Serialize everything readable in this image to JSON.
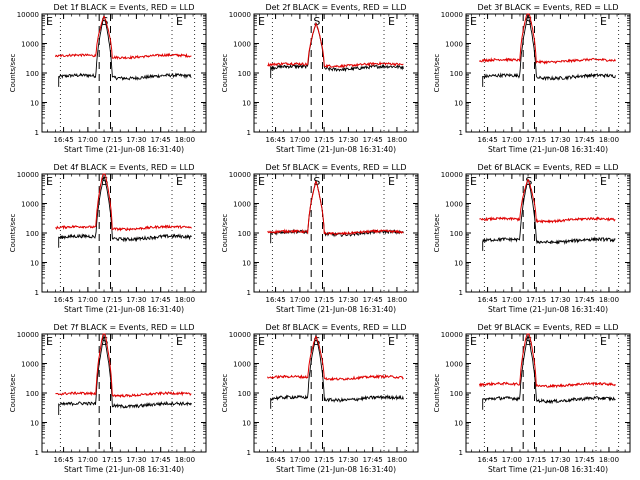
{
  "figure": {
    "type": "multi-panel-lightcurve",
    "background": "#ffffff",
    "events_color": "#000000",
    "lld_color": "#e00000"
  },
  "chart_data": [
    {
      "type": "line",
      "title": "Det 1f BLACK = Events, RED = LLD",
      "xlabel": "Start Time (21-Jun-08 16:31:40)",
      "ylabel": "Counts/sec",
      "ylog": true,
      "ylim": [
        1,
        10000
      ],
      "xlim": [
        "16:31:40",
        "18:13:00"
      ],
      "yticks": [
        "1",
        "10",
        "100",
        "1000",
        "10000"
      ],
      "xticks": [
        "16:45",
        "17:00",
        "17:15",
        "17:30",
        "17:45",
        "18:00"
      ],
      "dotted_markers": [
        "16:43",
        "17:52",
        "18:06"
      ],
      "dashed_markers": [
        "17:07",
        "17:14"
      ],
      "region_labels": [
        "E",
        "S",
        "E"
      ],
      "events_base": 75,
      "lld_base": 370,
      "events_start": "16:42",
      "lld_start": "16:40",
      "end": "18:04",
      "flare_start": "17:05",
      "flare_end": "17:15",
      "flare_peak": "17:10",
      "flare_peak_value": 9000,
      "events_flare_max": 9000
    },
    {
      "type": "line",
      "title": "Det 2f BLACK = Events, RED = LLD",
      "xlabel": "Start Time (21-Jun-08 16:31:40)",
      "ylabel": "Counts/sec",
      "ylog": true,
      "ylim": [
        1,
        10000
      ],
      "xlim": [
        "16:31:40",
        "18:13:00"
      ],
      "yticks": [
        "1",
        "10",
        "100",
        "1000",
        "10000"
      ],
      "xticks": [
        "16:45",
        "17:00",
        "17:15",
        "17:30",
        "17:45",
        "18:00"
      ],
      "dotted_markers": [
        "16:43",
        "17:52",
        "18:06"
      ],
      "dashed_markers": [
        "17:07",
        "17:14"
      ],
      "region_labels": [
        "E",
        "S",
        "E"
      ],
      "events_base": 150,
      "lld_base": 190,
      "events_start": "16:42",
      "lld_start": "16:40",
      "end": "18:04",
      "flare_start": "17:05",
      "flare_end": "17:15",
      "flare_peak": "17:10",
      "flare_peak_value": 5000,
      "events_flare_max": 5000
    },
    {
      "type": "line",
      "title": "Det 3f BLACK = Events, RED = LLD",
      "xlabel": "Start Time (21-Jun-08 16:31:40)",
      "ylabel": "Counts/sec",
      "ylog": true,
      "ylim": [
        1,
        10000
      ],
      "xlim": [
        "16:31:40",
        "18:13:00"
      ],
      "yticks": [
        "1",
        "10",
        "100",
        "1000",
        "10000"
      ],
      "xticks": [
        "16:45",
        "17:00",
        "17:15",
        "17:30",
        "17:45",
        "18:00"
      ],
      "dotted_markers": [
        "16:43",
        "17:52",
        "18:06"
      ],
      "dashed_markers": [
        "17:07",
        "17:14"
      ],
      "region_labels": [
        "E",
        "S",
        "E"
      ],
      "events_base": 75,
      "lld_base": 260,
      "events_start": "16:42",
      "lld_start": "16:40",
      "end": "18:04",
      "flare_start": "17:05",
      "flare_end": "17:15",
      "flare_peak": "17:10",
      "flare_peak_value": 15000,
      "events_flare_max": 10000
    },
    {
      "type": "line",
      "title": "Det 4f BLACK = Events, RED = LLD",
      "xlabel": "Start Time (21-Jun-08 16:31:40)",
      "ylabel": "Counts/sec",
      "ylog": true,
      "ylim": [
        1,
        10000
      ],
      "xlim": [
        "16:31:40",
        "18:13:00"
      ],
      "yticks": [
        "1",
        "10",
        "100",
        "1000",
        "10000"
      ],
      "xticks": [
        "16:45",
        "17:00",
        "17:15",
        "17:30",
        "17:45",
        "18:00"
      ],
      "dotted_markers": [
        "16:43",
        "17:52",
        "18:06"
      ],
      "dashed_markers": [
        "17:07",
        "17:14"
      ],
      "region_labels": [
        "E",
        "S",
        "E"
      ],
      "events_base": 70,
      "lld_base": 150,
      "events_start": "16:42",
      "lld_start": "16:40",
      "end": "18:04",
      "flare_start": "17:05",
      "flare_end": "17:15",
      "flare_peak": "17:10",
      "flare_peak_value": 15000,
      "events_flare_max": 9000
    },
    {
      "type": "line",
      "title": "Det 5f BLACK = Events, RED = LLD",
      "xlabel": "Start Time (21-Jun-08 16:31:40)",
      "ylabel": "Counts/sec",
      "ylog": true,
      "ylim": [
        1,
        10000
      ],
      "xlim": [
        "16:31:40",
        "18:13:00"
      ],
      "yticks": [
        "1",
        "10",
        "100",
        "1000",
        "10000"
      ],
      "xticks": [
        "16:45",
        "17:00",
        "17:15",
        "17:30",
        "17:45",
        "18:00"
      ],
      "dotted_markers": [
        "16:43",
        "17:52",
        "18:06"
      ],
      "dashed_markers": [
        "17:07",
        "17:14"
      ],
      "region_labels": [
        "E",
        "S",
        "E"
      ],
      "events_base": 100,
      "lld_base": 105,
      "events_start": "16:42",
      "lld_start": "16:40",
      "end": "18:04",
      "flare_start": "17:05",
      "flare_end": "17:15",
      "flare_peak": "17:10",
      "flare_peak_value": 6000,
      "events_flare_max": 6000
    },
    {
      "type": "line",
      "title": "Det 6f BLACK = Events, RED = LLD",
      "xlabel": "Start Time (21-Jun-08 16:31:40)",
      "ylabel": "Counts/sec",
      "ylog": true,
      "ylim": [
        1,
        10000
      ],
      "xlim": [
        "16:31:40",
        "18:13:00"
      ],
      "yticks": [
        "1",
        "10",
        "100",
        "1000",
        "10000"
      ],
      "xticks": [
        "16:45",
        "17:00",
        "17:15",
        "17:30",
        "17:45",
        "18:00"
      ],
      "dotted_markers": [
        "16:43",
        "17:52",
        "18:06"
      ],
      "dashed_markers": [
        "17:07",
        "17:14"
      ],
      "region_labels": [
        "E",
        "S",
        "E"
      ],
      "events_base": 55,
      "lld_base": 280,
      "events_start": "16:42",
      "lld_start": "16:40",
      "end": "18:04",
      "flare_start": "17:05",
      "flare_end": "17:15",
      "flare_peak": "17:10",
      "flare_peak_value": 7000,
      "events_flare_max": 7000
    },
    {
      "type": "line",
      "title": "Det 7f BLACK = Events, RED = LLD",
      "xlabel": "Start Time (21-Jun-08 16:31:40)",
      "ylabel": "Counts/sec",
      "ylog": true,
      "ylim": [
        1,
        10000
      ],
      "xlim": [
        "16:31:40",
        "18:13:00"
      ],
      "yticks": [
        "1",
        "10",
        "100",
        "1000",
        "10000"
      ],
      "xticks": [
        "16:45",
        "17:00",
        "17:15",
        "17:30",
        "17:45",
        "18:00"
      ],
      "dotted_markers": [
        "16:43",
        "17:52",
        "18:06"
      ],
      "dashed_markers": [
        "17:07",
        "17:14"
      ],
      "region_labels": [
        "E",
        "S",
        "E"
      ],
      "events_base": 40,
      "lld_base": 90,
      "events_start": "16:42",
      "lld_start": "16:40",
      "end": "18:04",
      "flare_start": "17:05",
      "flare_end": "17:15",
      "flare_peak": "17:10",
      "flare_peak_value": 15000,
      "events_flare_max": 9000
    },
    {
      "type": "line",
      "title": "Det 8f BLACK = Events, RED = LLD",
      "xlabel": "Start Time (21-Jun-08 16:31:40)",
      "ylabel": "Counts/sec",
      "ylog": true,
      "ylim": [
        1,
        10000
      ],
      "xlim": [
        "16:31:40",
        "18:13:00"
      ],
      "yticks": [
        "1",
        "10",
        "100",
        "1000",
        "10000"
      ],
      "xticks": [
        "16:45",
        "17:00",
        "17:15",
        "17:30",
        "17:45",
        "18:00"
      ],
      "dotted_markers": [
        "16:43",
        "17:52",
        "18:06"
      ],
      "dashed_markers": [
        "17:07",
        "17:14"
      ],
      "region_labels": [
        "E",
        "S",
        "E"
      ],
      "events_base": 65,
      "lld_base": 330,
      "events_start": "16:42",
      "lld_start": "16:40",
      "end": "18:04",
      "flare_start": "17:05",
      "flare_end": "17:15",
      "flare_peak": "17:10",
      "flare_peak_value": 9000,
      "events_flare_max": 9000
    },
    {
      "type": "line",
      "title": "Det 9f BLACK = Events, RED = LLD",
      "xlabel": "Start Time (21-Jun-08 16:31:40)",
      "ylabel": "Counts/sec",
      "ylog": true,
      "ylim": [
        1,
        10000
      ],
      "xlim": [
        "16:31:40",
        "18:13:00"
      ],
      "yticks": [
        "1",
        "10",
        "100",
        "1000",
        "10000"
      ],
      "xticks": [
        "16:45",
        "17:00",
        "17:15",
        "17:30",
        "17:45",
        "18:00"
      ],
      "dotted_markers": [
        "16:43",
        "17:52",
        "18:06"
      ],
      "dashed_markers": [
        "17:07",
        "17:14"
      ],
      "region_labels": [
        "E",
        "S",
        "E"
      ],
      "events_base": 60,
      "lld_base": 190,
      "events_start": "16:42",
      "lld_start": "16:40",
      "end": "18:04",
      "flare_start": "17:05",
      "flare_end": "17:15",
      "flare_peak": "17:10",
      "flare_peak_value": 15000,
      "events_flare_max": 9000
    }
  ]
}
